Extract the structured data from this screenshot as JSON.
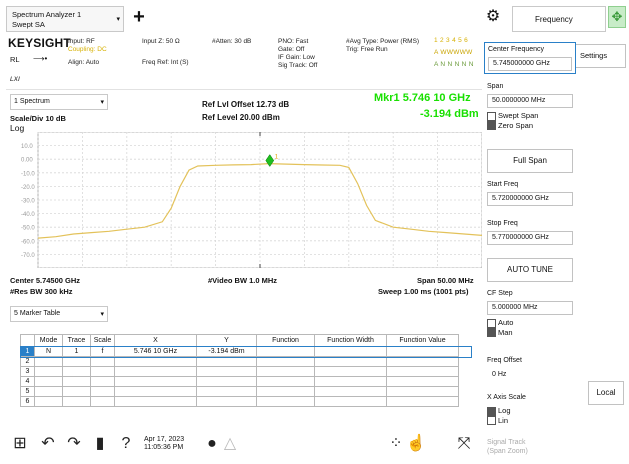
{
  "tabs": {
    "title_line1": "Spectrum Analyzer 1",
    "title_line2": "Swept SA",
    "add_label": "+"
  },
  "header": {
    "menu_label": "Frequency"
  },
  "info": {
    "brand": "KEYSIGHT",
    "rl_label": "RL",
    "lu_label": "LXI",
    "input_rf": "Input: RF",
    "coupling": "Coupling: DC",
    "align": "Align: Auto",
    "input_z": "Input Z: 50 Ω",
    "freq_ref": "Freq Ref: Int (S)",
    "atten": "#Atten: 30 dB",
    "pno": "PNO: Fast",
    "gate": "Gate: Off",
    "if_gain": "IF Gain: Low",
    "sig_track": "Sig Track: Off",
    "avg_type": "#Avg Type: Power (RMS)",
    "trig": "Trig: Free Run",
    "trace_nums": "1 2 3 4 5 6",
    "trace_types": "A WWWWW",
    "trace_dets": "A N N N N N"
  },
  "chart_head": {
    "spectrum_label": "1 Spectrum",
    "scale_label": "Scale/Div 10 dB",
    "log_label": "Log",
    "ref_offset": "Ref Lvl Offset 12.73 dB",
    "ref_level": "Ref Level 20.00 dBm",
    "mkr_freq": "Mkr1  5.746 10 GHz",
    "mkr_amp": "-3.194 dBm"
  },
  "chart_data": {
    "type": "line",
    "title": "",
    "xlabel": "",
    "ylabel": "",
    "y_tick_labels": [
      "10.0",
      "0.00",
      "-10.0",
      "-20.0",
      "-30.0",
      "-40.0",
      "-50.0",
      "-60.0",
      "-70.0"
    ],
    "ylim": [
      -80,
      20
    ],
    "xlim": [
      5.72,
      5.77
    ],
    "x_unit": "GHz",
    "y_unit": "dBm",
    "grid": true,
    "series": [
      {
        "x": [
          5.72,
          5.722,
          5.724,
          5.726,
          5.728,
          5.73,
          5.732,
          5.734,
          5.735,
          5.736,
          5.737,
          5.738,
          5.74,
          5.742,
          5.744,
          5.746,
          5.748,
          5.75,
          5.752,
          5.754,
          5.755,
          5.756,
          5.757,
          5.758,
          5.76,
          5.762,
          5.764,
          5.766,
          5.768,
          5.77
        ],
        "y": [
          -58,
          -57,
          -55,
          -54,
          -53,
          -51.5,
          -50,
          -46,
          -36,
          -20,
          -8,
          -5,
          -4.5,
          -4.2,
          -4,
          -3.2,
          -3.6,
          -4,
          -4.3,
          -4.5,
          -6,
          -18,
          -34,
          -45,
          -50,
          -51.5,
          -53,
          -54,
          -55,
          -56
        ]
      }
    ],
    "marker": {
      "x": 5.7461,
      "y": -3.194,
      "label": "1"
    },
    "center_label": "Center 5.74500 GHz",
    "span_label": "Span 50.00 MHz",
    "res_bw_label": "#Res BW 300 kHz",
    "video_bw_label": "#Video BW 1.0 MHz",
    "sweep_label": "Sweep 1.00 ms (1001 pts)"
  },
  "marker_table": {
    "selector_label": "5 Marker Table",
    "columns": [
      "",
      "Mode",
      "Trace",
      "Scale",
      "X",
      "Y",
      "Function",
      "Function Width",
      "Function Value"
    ],
    "rows": [
      [
        "1",
        "N",
        "1",
        "f",
        "5.746 10 GHz",
        "-3.194 dBm",
        "",
        "",
        ""
      ],
      [
        "2",
        "",
        "",
        "",
        "",
        "",
        "",
        "",
        ""
      ],
      [
        "3",
        "",
        "",
        "",
        "",
        "",
        "",
        "",
        ""
      ],
      [
        "4",
        "",
        "",
        "",
        "",
        "",
        "",
        "",
        ""
      ],
      [
        "5",
        "",
        "",
        "",
        "",
        "",
        "",
        "",
        ""
      ],
      [
        "6",
        "",
        "",
        "",
        "",
        "",
        "",
        "",
        ""
      ]
    ]
  },
  "panel": {
    "settings_tab": "Settings",
    "center_freq_label": "Center Frequency",
    "center_freq_value": "5.745000000 GHz",
    "span_label": "Span",
    "span_value": "50.0000000 MHz",
    "swept_span": "Swept Span",
    "zero_span": "Zero Span",
    "full_span": "Full Span",
    "start_label": "Start Freq",
    "start_value": "5.720000000 GHz",
    "stop_label": "Stop Freq",
    "stop_value": "5.770000000 GHz",
    "auto_tune": "AUTO TUNE",
    "cf_step_label": "CF Step",
    "cf_step_value": "5.000000 MHz",
    "auto": "Auto",
    "man": "Man",
    "freq_offset_label": "Freq Offset",
    "freq_offset_value": "0 Hz",
    "x_axis_label": "X Axis Scale",
    "log": "Log",
    "lin": "Lin",
    "signal_track": "Signal Track",
    "span_zoom": "(Span Zoom)",
    "local_label": "Local"
  },
  "toolbar": {
    "date": "Apr 17, 2023",
    "time": "11:05:36 PM"
  }
}
